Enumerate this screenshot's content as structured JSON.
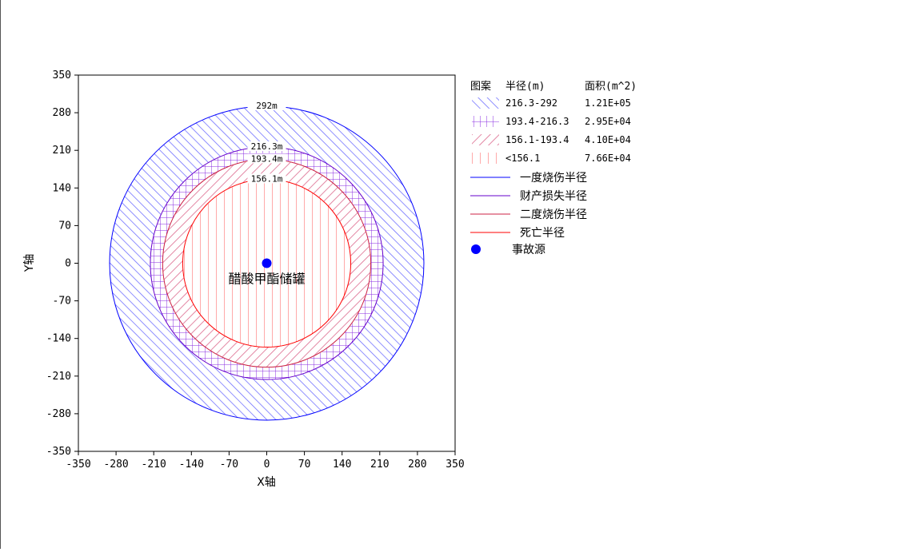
{
  "chart_data": {
    "type": "concentric-circles",
    "xlabel": "X轴",
    "ylabel": "Y轴",
    "xlim": [
      -350,
      350
    ],
    "ylim": [
      -350,
      350
    ],
    "xticks": [
      "-350",
      "-280",
      "-210",
      "-140",
      "-70",
      "0",
      "70",
      "140",
      "210",
      "280",
      "350"
    ],
    "yticks": [
      "350",
      "280",
      "210",
      "140",
      "70",
      "0",
      "-70",
      "-140",
      "-210",
      "-280",
      "-350"
    ],
    "rings": [
      {
        "r": 292,
        "label": "292m",
        "color": "#0000ff",
        "fill": "#6a6aff",
        "pattern": "diag"
      },
      {
        "r": 216.3,
        "label": "216.3m",
        "color": "#6600cc",
        "fill": "#8a2be2",
        "pattern": "grid"
      },
      {
        "r": 193.4,
        "label": "193.4m",
        "color": "#cc2244",
        "fill": "#e07a9a",
        "pattern": "backdiag"
      },
      {
        "r": 156.1,
        "label": "156.1m",
        "color": "#ff0000",
        "fill": "#ff5555",
        "pattern": "vert"
      }
    ],
    "source": {
      "x": 0,
      "y": 0,
      "label": "醋酸甲酯储罐",
      "color": "#0000ff"
    },
    "legend": {
      "headers": {
        "pattern": "图案",
        "radius": "半径(m)",
        "area": "面积(m^2)"
      },
      "rows": [
        {
          "radius": "216.3-292",
          "area": "1.21E+05"
        },
        {
          "radius": "193.4-216.3",
          "area": "2.95E+04"
        },
        {
          "radius": "156.1-193.4",
          "area": "4.10E+04"
        },
        {
          "radius": "<156.1",
          "area": "7.66E+04"
        }
      ],
      "lines": [
        {
          "label": "一度烧伤半径",
          "color": "#0000ff"
        },
        {
          "label": "财产损失半径",
          "color": "#6600cc"
        },
        {
          "label": "二度烧伤半径",
          "color": "#cc2244"
        },
        {
          "label": "死亡半径",
          "color": "#ff0000"
        }
      ],
      "marker_label": "事故源"
    }
  }
}
